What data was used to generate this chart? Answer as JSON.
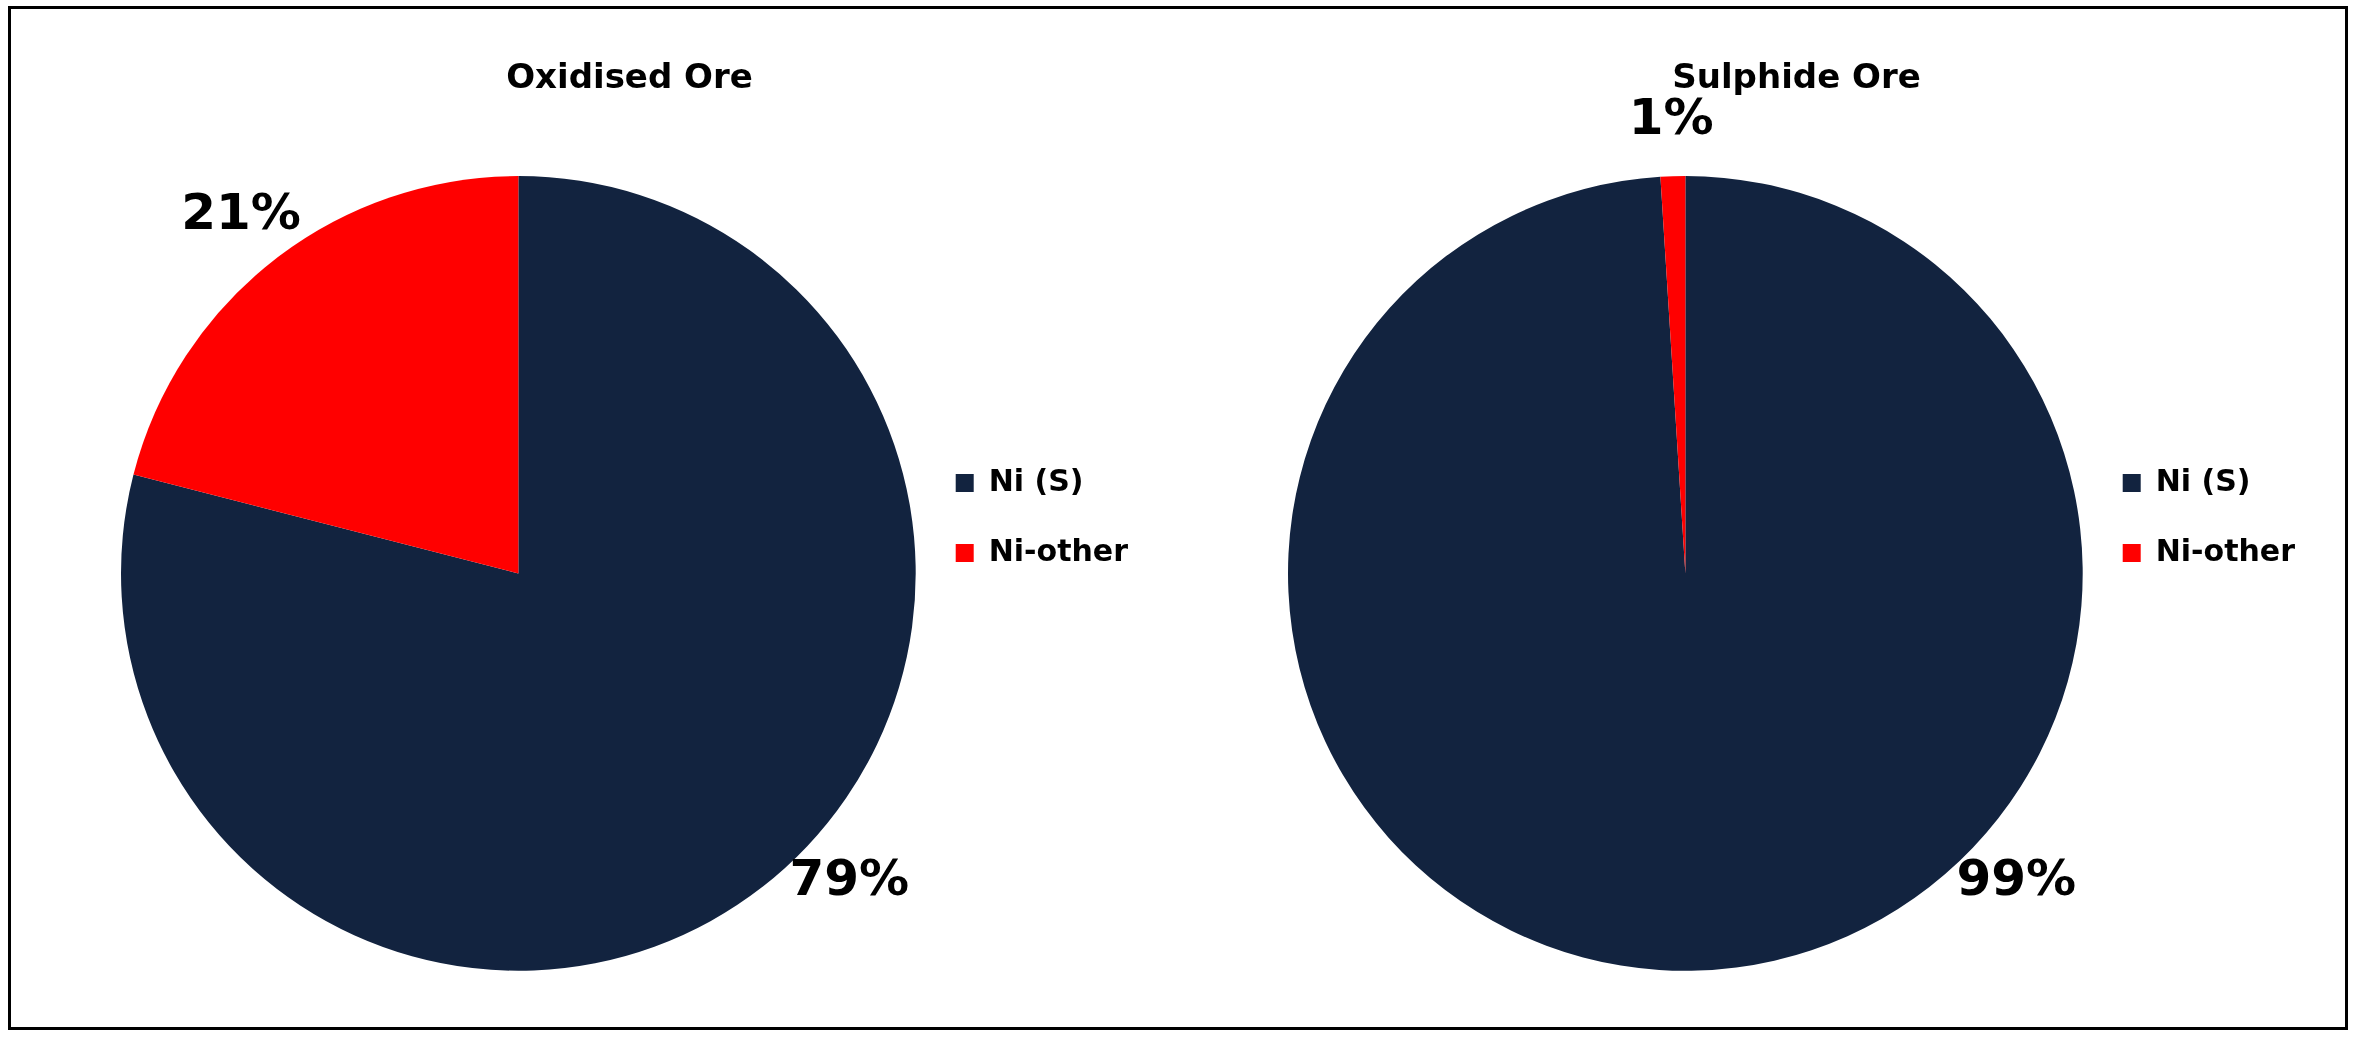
{
  "chart_data": [
    {
      "type": "pie",
      "title": "Oxidised Ore",
      "categories": [
        "Ni (S)",
        "Ni-other"
      ],
      "values": [
        79,
        21
      ],
      "colors": [
        "#12233f",
        "#ff0000"
      ],
      "value_labels": [
        "79%",
        "21%"
      ],
      "legend": "right"
    },
    {
      "type": "pie",
      "title": "Sulphide Ore",
      "categories": [
        "Ni (S)",
        "Ni-other"
      ],
      "values": [
        99,
        1
      ],
      "colors": [
        "#12233f",
        "#ff0000"
      ],
      "value_labels": [
        "99%",
        "1%"
      ],
      "legend": "right"
    }
  ]
}
